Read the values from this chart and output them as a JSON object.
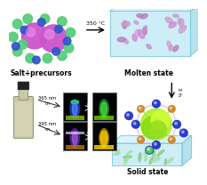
{
  "background_color": "#ffffff",
  "top_left_label": "Salt+precursors",
  "top_right_label": "Molten state",
  "bottom_right_label": "Solid state",
  "arrow_350_text": "350 °C",
  "arrow_3h_text": "3 h",
  "salt_large_color": "#cc55cc",
  "salt_small_green": "#55cc77",
  "salt_small_blue": "#3355cc",
  "molten_face_color": "#c5ecf5",
  "molten_edge_color": "#80ccdd",
  "solid_face_color": "#c5ecf5",
  "solid_edge_color": "#80ccdd",
  "label_fontsize": 5.5,
  "annot_fontsize": 4.5
}
